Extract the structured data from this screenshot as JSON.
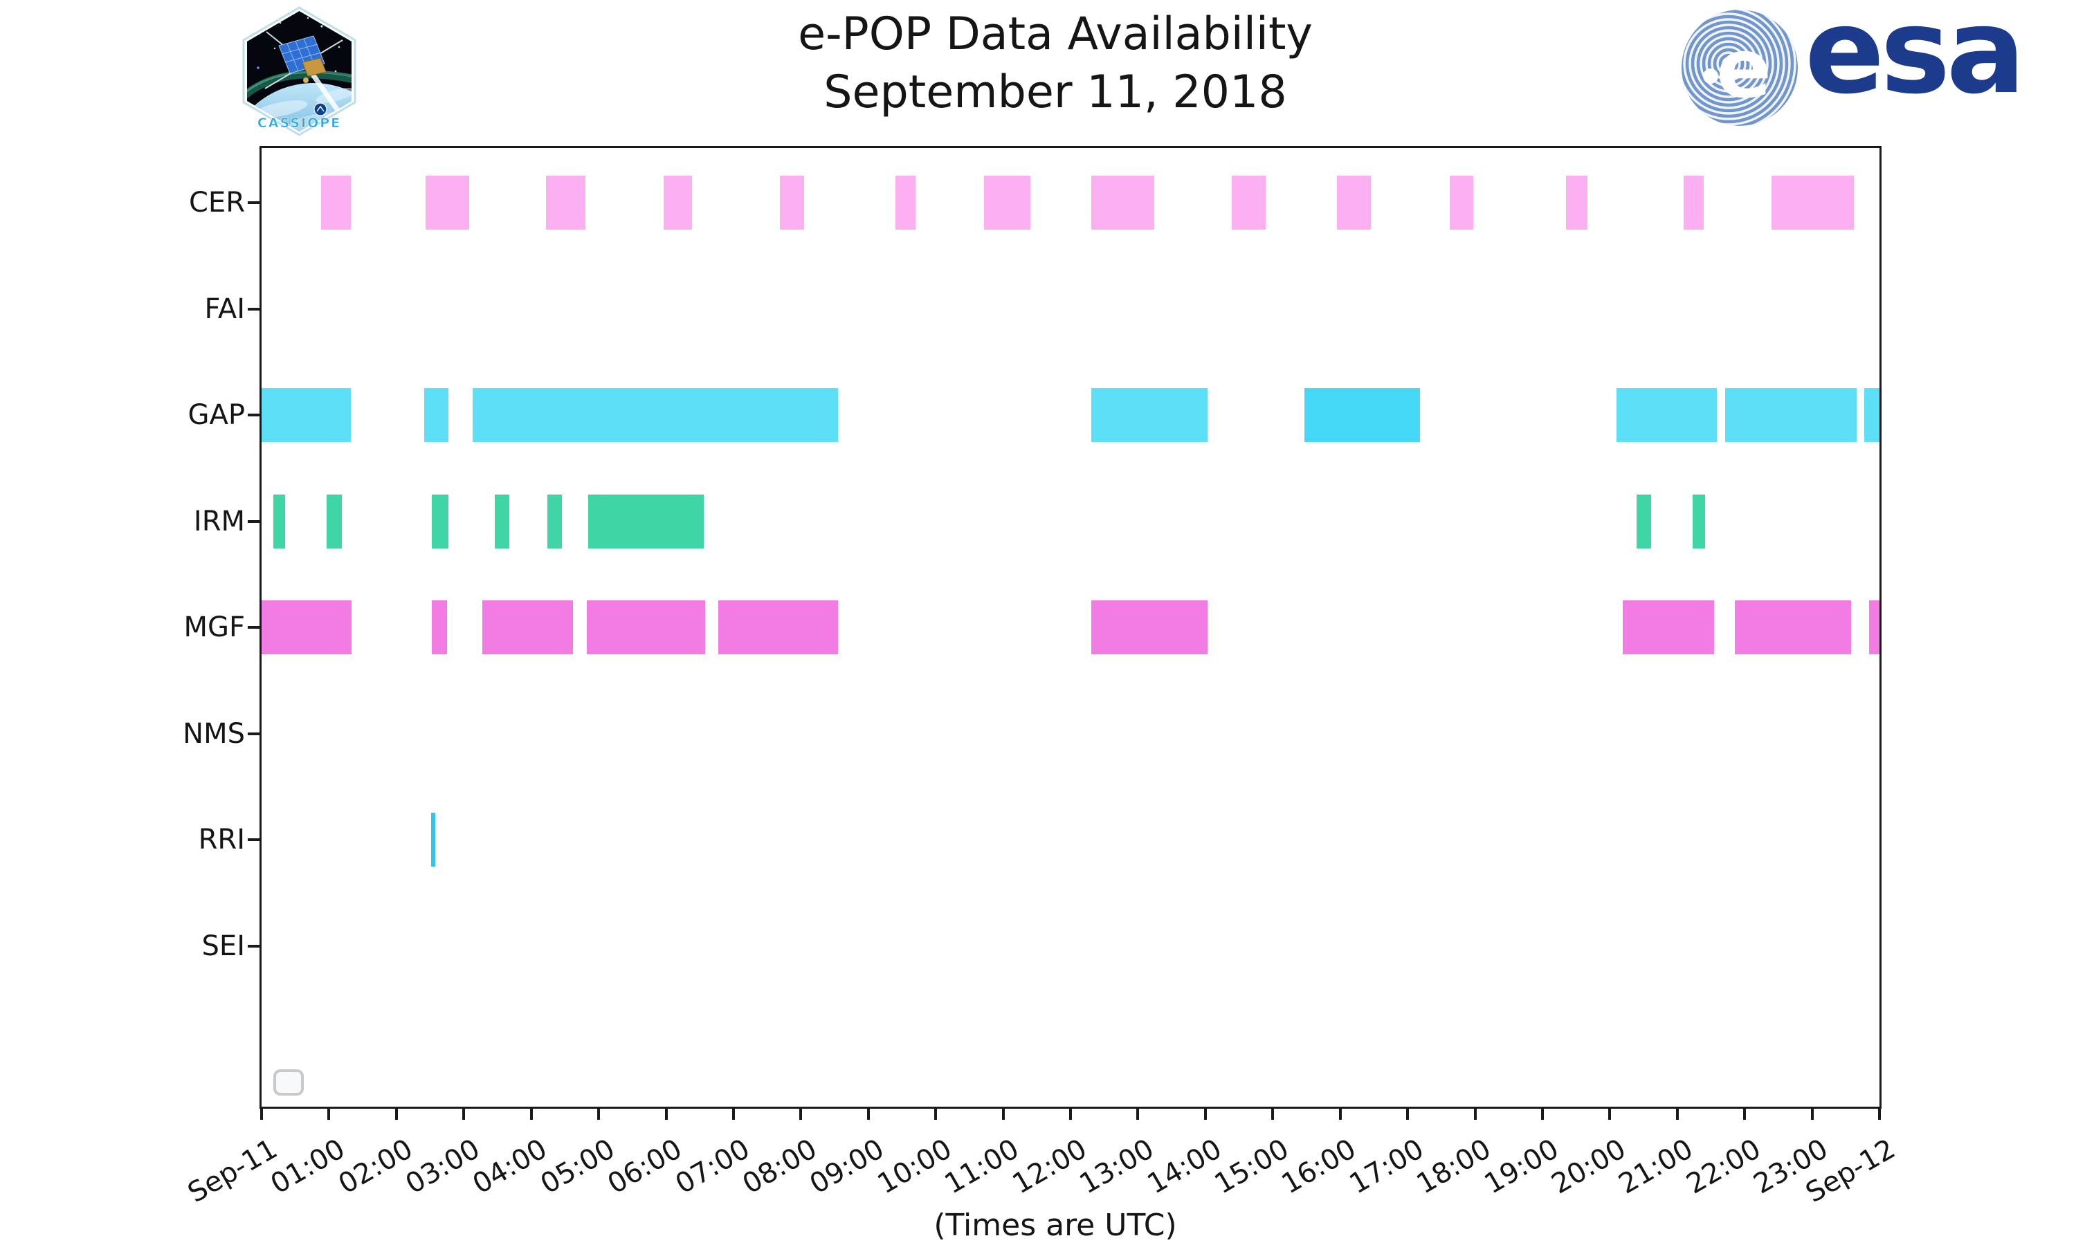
{
  "header": {
    "title_line1": "e-POP Data Availability",
    "title_line2": "September 11, 2018",
    "cassiope_patch_label": "CASSIOPE",
    "esa_logo_text": "esa"
  },
  "chart_data": {
    "type": "bar",
    "subtype": "gantt-availability-timeline",
    "title": "e-POP Data Availability September 11, 2018",
    "xlabel": "(Times are UTC)",
    "ylabel": "",
    "grid": false,
    "legend": "empty placeholder box at bottom-left inside axes",
    "x_axis": {
      "units": "hours UTC from 2018-09-11 00:00",
      "range_hours": [
        0,
        24
      ],
      "tick_labels": [
        "Sep-11",
        "01:00",
        "02:00",
        "03:00",
        "04:00",
        "05:00",
        "06:00",
        "07:00",
        "08:00",
        "09:00",
        "10:00",
        "11:00",
        "12:00",
        "13:00",
        "14:00",
        "15:00",
        "16:00",
        "17:00",
        "18:00",
        "19:00",
        "20:00",
        "21:00",
        "22:00",
        "23:00",
        "Sep-12"
      ]
    },
    "rows": [
      {
        "label": "CER",
        "color": "#fcaff0",
        "intervals": [
          {
            "s": 0.88,
            "e": 1.32
          },
          {
            "s": 2.43,
            "e": 3.08
          },
          {
            "s": 4.22,
            "e": 4.8
          },
          {
            "s": 5.96,
            "e": 6.39
          },
          {
            "s": 7.69,
            "e": 8.05
          },
          {
            "s": 9.4,
            "e": 9.7
          },
          {
            "s": 10.72,
            "e": 11.4
          },
          {
            "s": 12.31,
            "e": 13.24
          },
          {
            "s": 14.39,
            "e": 14.9
          },
          {
            "s": 15.95,
            "e": 16.46
          },
          {
            "s": 17.63,
            "e": 17.97
          },
          {
            "s": 19.35,
            "e": 19.67
          },
          {
            "s": 21.1,
            "e": 21.39
          },
          {
            "s": 22.4,
            "e": 23.62
          }
        ]
      },
      {
        "label": "FAI",
        "color": "#bbbbbb",
        "intervals": []
      },
      {
        "label": "GAP",
        "color": "#5edff8",
        "intervals": [
          {
            "s": 0.0,
            "e": 1.32
          },
          {
            "s": 2.41,
            "e": 2.77
          },
          {
            "s": 3.13,
            "e": 8.55
          },
          {
            "s": 12.31,
            "e": 14.03
          },
          {
            "s": 15.47,
            "e": 17.18,
            "c": "#45d7f6"
          },
          {
            "s": 20.1,
            "e": 21.59
          },
          {
            "s": 21.71,
            "e": 23.66
          },
          {
            "s": 23.77,
            "e": 24.0
          }
        ]
      },
      {
        "label": "IRM",
        "color": "#3fd5a6",
        "intervals": [
          {
            "s": 0.17,
            "e": 0.35
          },
          {
            "s": 0.97,
            "e": 1.19
          },
          {
            "s": 2.53,
            "e": 2.77
          },
          {
            "s": 3.46,
            "e": 3.67
          },
          {
            "s": 4.24,
            "e": 4.46
          },
          {
            "s": 4.85,
            "e": 6.56
          },
          {
            "s": 20.4,
            "e": 20.61
          },
          {
            "s": 21.23,
            "e": 21.41
          }
        ]
      },
      {
        "label": "MGF",
        "color": "#f27ce4",
        "intervals": [
          {
            "s": 0.0,
            "e": 1.33
          },
          {
            "s": 2.53,
            "e": 2.75
          },
          {
            "s": 3.27,
            "e": 4.62
          },
          {
            "s": 4.82,
            "e": 6.58
          },
          {
            "s": 6.78,
            "e": 8.55
          },
          {
            "s": 12.31,
            "e": 14.03
          },
          {
            "s": 20.19,
            "e": 21.55
          },
          {
            "s": 21.85,
            "e": 23.58
          },
          {
            "s": 23.85,
            "e": 24.0
          }
        ]
      },
      {
        "label": "NMS",
        "color": "#bbbbbb",
        "intervals": []
      },
      {
        "label": "RRI",
        "color": "#32c5ea",
        "intervals": [
          {
            "s": 2.51,
            "e": 2.58
          }
        ]
      },
      {
        "label": "SEI",
        "color": "#bbbbbb",
        "intervals": []
      }
    ]
  }
}
